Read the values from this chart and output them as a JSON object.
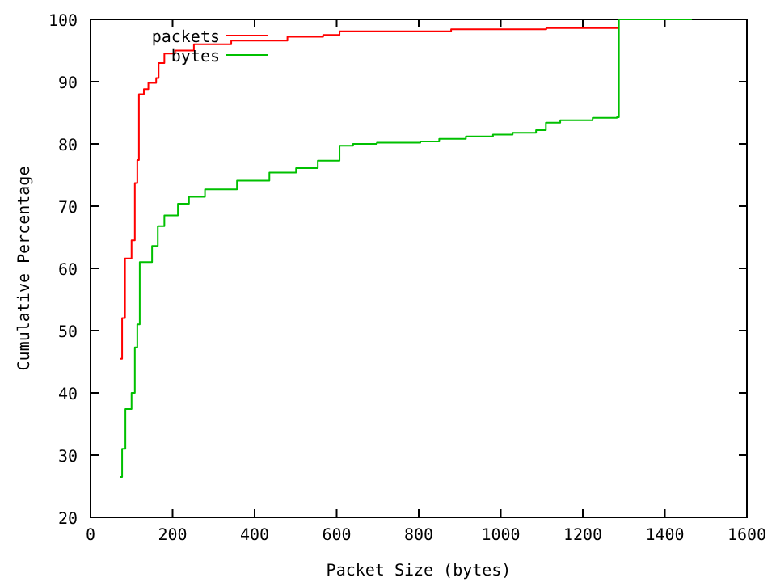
{
  "chart_data": {
    "type": "step",
    "xlabel": "Packet Size (bytes)",
    "ylabel": "Cumulative Percentage",
    "xlim": [
      0,
      1600
    ],
    "xticks": [
      0,
      200,
      400,
      600,
      800,
      1000,
      1200,
      1400,
      1600
    ],
    "ylim": [
      20,
      100
    ],
    "yticks": [
      20,
      30,
      40,
      50,
      60,
      70,
      80,
      90,
      100
    ],
    "legend": "top left",
    "grid": false,
    "series": [
      {
        "name": "packets",
        "color": "#ff0000",
        "x": [
          72,
          77,
          84,
          100,
          108,
          114,
          118,
          130,
          141,
          160,
          166,
          180,
          206,
          252,
          343,
          480,
          567,
          607,
          879,
          1111,
          1288
        ],
        "values": [
          45.5,
          52,
          61.6,
          64.5,
          73.7,
          77.4,
          88,
          88.8,
          89.8,
          90.6,
          93,
          94.5,
          95,
          96,
          96.6,
          97.2,
          97.5,
          98.1,
          98.4,
          98.6,
          98.6
        ]
      },
      {
        "name": "bytes",
        "color": "#00c000",
        "x": [
          72,
          77,
          85,
          100,
          108,
          114,
          120,
          150,
          164,
          180,
          213,
          240,
          279,
          357,
          436,
          501,
          554,
          607,
          640,
          698,
          804,
          850,
          915,
          981,
          1029,
          1086,
          1110,
          1145,
          1224,
          1283,
          1288,
          1466
        ],
        "values": [
          26.5,
          31,
          37.4,
          40,
          47.3,
          51,
          61,
          63.6,
          66.8,
          68.5,
          70.4,
          71.5,
          72.7,
          74.1,
          75.4,
          76.1,
          77.3,
          79.7,
          80,
          80.2,
          80.4,
          80.8,
          81.2,
          81.5,
          81.8,
          82.2,
          83.4,
          83.8,
          84.2,
          84.3,
          100,
          100
        ]
      }
    ]
  }
}
